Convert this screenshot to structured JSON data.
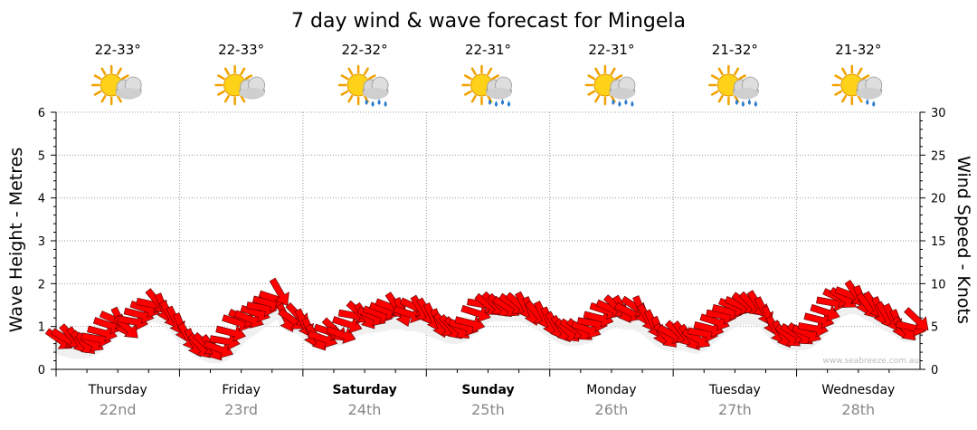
{
  "chart_data": {
    "type": "line",
    "title": "7 day wind & wave forecast for Mingela",
    "ylabel_left": "Wave Height - Metres",
    "ylabel_right": "Wind Speed - Knots",
    "ylim_left": [
      0,
      6
    ],
    "ylim_right": [
      0,
      30
    ],
    "yticks_left": [
      "0",
      "1",
      "2",
      "3",
      "4",
      "5",
      "6"
    ],
    "yticks_right": [
      "0",
      "5",
      "10",
      "15",
      "20",
      "25",
      "30"
    ],
    "credit": "www.seabreeze.com.au",
    "grid": true,
    "days": [
      {
        "name": "Thursday",
        "date": "22nd",
        "temp": "22-33°",
        "weather": "partly-cloudy",
        "bold": false
      },
      {
        "name": "Friday",
        "date": "23rd",
        "temp": "22-33°",
        "weather": "partly-cloudy",
        "bold": false
      },
      {
        "name": "Saturday",
        "date": "24th",
        "temp": "22-32°",
        "weather": "showers",
        "bold": true
      },
      {
        "name": "Sunday",
        "date": "25th",
        "temp": "22-31°",
        "weather": "showers",
        "bold": true
      },
      {
        "name": "Monday",
        "date": "26th",
        "temp": "22-31°",
        "weather": "showers",
        "bold": false
      },
      {
        "name": "Tuesday",
        "date": "27th",
        "temp": "21-32°",
        "weather": "showers",
        "bold": false
      },
      {
        "name": "Wednesday",
        "date": "28th",
        "temp": "21-32°",
        "weather": "light-shower",
        "bold": false
      }
    ],
    "series": [
      {
        "name": "Wind Speed - Knots",
        "color": "#ff0000",
        "marker": "direction-arrow",
        "values": [
          3.5,
          3.6,
          3.8,
          3.4,
          3.1,
          3.2,
          3.6,
          4.3,
          5.2,
          5.8,
          5.6,
          4.9,
          5.6,
          6.4,
          7.1,
          7.6,
          7.9,
          7.2,
          6.4,
          5.7,
          4.9,
          3.8,
          3.1,
          2.7,
          2.9,
          2.5,
          2.4,
          3.3,
          4.3,
          5.5,
          6.0,
          5.9,
          6.6,
          7.2,
          7.8,
          8.3,
          9.0,
          6.0,
          5.8,
          6.3,
          5.4,
          4.3,
          3.7,
          3.6,
          4.4,
          4.6,
          4.1,
          5.3,
          6.3,
          6.6,
          6.2,
          6.2,
          6.5,
          6.9,
          7.3,
          7.4,
          6.7,
          6.5,
          7.3,
          7.0,
          6.7,
          6.1,
          5.4,
          5.1,
          4.9,
          4.8,
          5.0,
          5.4,
          6.6,
          7.6,
          7.5,
          7.6,
          7.4,
          7.3,
          7.6,
          7.6,
          7.4,
          6.8,
          6.5,
          6.3,
          5.6,
          5.1,
          4.7,
          4.5,
          4.7,
          4.6,
          4.7,
          5.4,
          6.0,
          6.9,
          7.1,
          7.3,
          7.0,
          6.7,
          7.3,
          6.9,
          6.0,
          5.3,
          4.5,
          3.9,
          4.1,
          4.3,
          4.1,
          3.7,
          3.6,
          4.2,
          4.8,
          5.6,
          6.3,
          6.8,
          7.3,
          7.5,
          7.7,
          7.6,
          7.6,
          6.8,
          5.7,
          4.6,
          4.1,
          3.9,
          4.2,
          4.1,
          4.2,
          4.8,
          5.8,
          6.7,
          7.8,
          8.4,
          8.3,
          8.7,
          8.8,
          8.1,
          7.4,
          7.5,
          6.8,
          6.3,
          6.0,
          5.3,
          4.7,
          4.9,
          5.8
        ]
      },
      {
        "name": "Wave Height - Metres",
        "color": "#ececec",
        "values": [
          0.7,
          0.65,
          0.62,
          0.6,
          0.6,
          0.65,
          0.72,
          0.85,
          1.0,
          1.1,
          1.2,
          1.25,
          1.3,
          1.35,
          1.4,
          1.45,
          1.45,
          1.4,
          1.3,
          1.15,
          1.0,
          0.85,
          0.72,
          0.62,
          0.55,
          0.5,
          0.5,
          0.55,
          0.68,
          0.85,
          1.0,
          1.1,
          1.2,
          1.3,
          1.4,
          1.5,
          1.55,
          1.3,
          1.2,
          1.2,
          1.1,
          0.95,
          0.85,
          0.8,
          0.85,
          0.9,
          0.92,
          1.0,
          1.1,
          1.15,
          1.2,
          1.2,
          1.22,
          1.25,
          1.28,
          1.3,
          1.28,
          1.25,
          1.25,
          1.22,
          1.18,
          1.1,
          1.05,
          1.0,
          0.95,
          0.95,
          1.0,
          1.1,
          1.25,
          1.4,
          1.45,
          1.48,
          1.48,
          1.48,
          1.48,
          1.48,
          1.45,
          1.38,
          1.3,
          1.22,
          1.12,
          1.02,
          0.95,
          0.9,
          0.9,
          0.92,
          0.95,
          1.05,
          1.15,
          1.25,
          1.3,
          1.32,
          1.3,
          1.28,
          1.28,
          1.22,
          1.12,
          1.0,
          0.88,
          0.8,
          0.78,
          0.8,
          0.8,
          0.75,
          0.72,
          0.78,
          0.9,
          1.02,
          1.15,
          1.25,
          1.32,
          1.38,
          1.4,
          1.4,
          1.38,
          1.3,
          1.15,
          0.98,
          0.85,
          0.8,
          0.8,
          0.8,
          0.82,
          0.9,
          1.05,
          1.2,
          1.4,
          1.55,
          1.6,
          1.65,
          1.65,
          1.6,
          1.5,
          1.45,
          1.35,
          1.25,
          1.2,
          1.1,
          1.0,
          1.0,
          1.05
        ]
      }
    ]
  }
}
